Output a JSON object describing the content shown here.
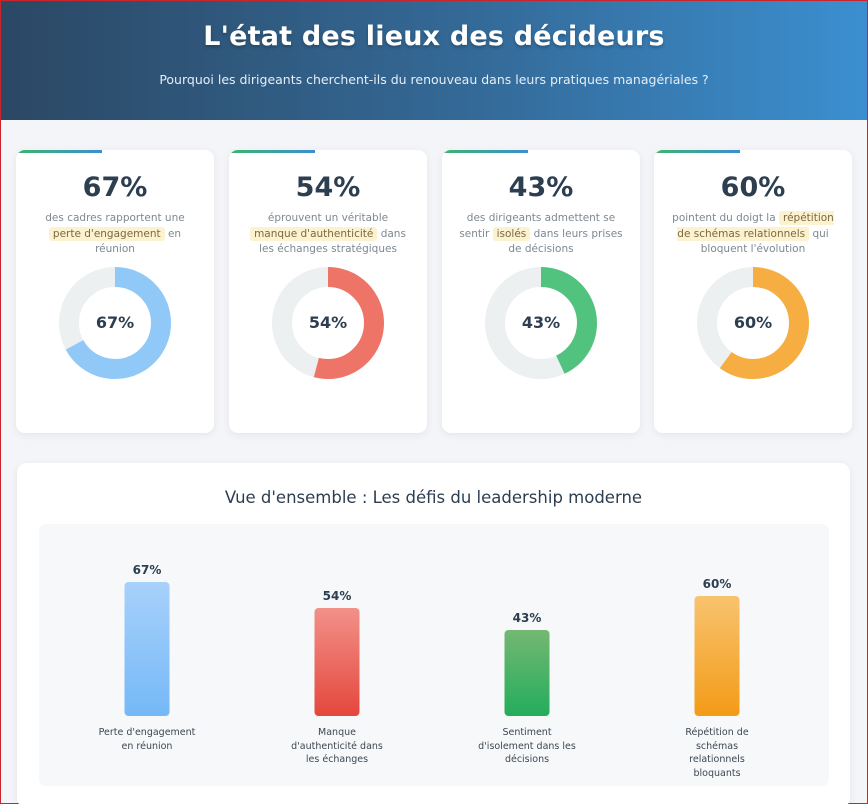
{
  "header": {
    "title": "L'état des lieux des décideurs",
    "subtitle": "Pourquoi les dirigeants cherchent-ils du renouveau dans leurs pratiques managériales ?"
  },
  "stats": [
    {
      "value": 67,
      "display": "67%",
      "pre": "des cadres rapportent une",
      "highlight": "perte d'engagement",
      "post": "en réunion",
      "color": "#90c8f7"
    },
    {
      "value": 54,
      "display": "54%",
      "pre": "éprouvent un véritable",
      "highlight": "manque d'authenticité",
      "post": "dans les échanges stratégiques",
      "color": "#ef7468"
    },
    {
      "value": 43,
      "display": "43%",
      "pre": "des dirigeants admettent se sentir",
      "highlight": "isolés",
      "post": "dans leurs prises de décisions",
      "color": "#52c27f"
    },
    {
      "value": 60,
      "display": "60%",
      "pre": "pointent du doigt la",
      "highlight": "répétition de schémas relationnels",
      "post": "qui bloquent l'évolution",
      "color": "#f6ad41"
    }
  ],
  "overview": {
    "title": "Vue d'ensemble : Les défis du leadership moderne"
  },
  "chart_data": {
    "type": "bar",
    "categories": [
      "Perte d'engagement en réunion",
      "Manque d'authenticité dans les échanges",
      "Sentiment d'isolement dans les décisions",
      "Répétition de schémas relationnels bloquants"
    ],
    "values": [
      67,
      54,
      43,
      60
    ],
    "value_labels": [
      "67%",
      "54%",
      "43%",
      "60%"
    ],
    "colors": [
      [
        "#a8d1fb",
        "#75b8f7"
      ],
      [
        "#f29189",
        "#e4473c"
      ],
      [
        "#74b872",
        "#23ad5c"
      ],
      [
        "#f8c36f",
        "#f39b17"
      ]
    ],
    "title": "Vue d'ensemble : Les défis du leadership moderne",
    "xlabel": "",
    "ylabel": "",
    "ylim": [
      0,
      100
    ],
    "grid": false
  }
}
